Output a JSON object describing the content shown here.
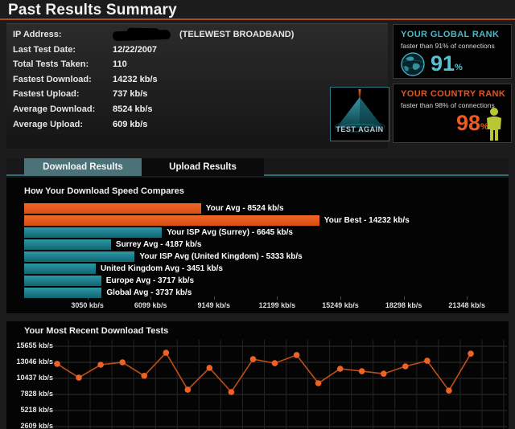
{
  "header": {
    "title": "Past Results Summary"
  },
  "summary": {
    "rows": [
      {
        "label": "IP Address:",
        "value": "",
        "redacted": true,
        "suffix": "(TELEWEST BROADBAND)"
      },
      {
        "label": "Last Test Date:",
        "value": "12/22/2007"
      },
      {
        "label": "Total Tests Taken:",
        "value": "110"
      },
      {
        "label": "Fastest Download:",
        "value": "14232 kb/s"
      },
      {
        "label": "Fastest Upload:",
        "value": "737 kb/s"
      },
      {
        "label": "Average Download:",
        "value": "8524 kb/s"
      },
      {
        "label": "Average Upload:",
        "value": "609 kb/s"
      }
    ],
    "test_again_label": "TEST AGAIN"
  },
  "ranks": {
    "global": {
      "title": "YOUR GLOBAL RANK",
      "subtitle": "faster than 91% of connections",
      "value": "91",
      "unit": "%"
    },
    "country": {
      "title": "YOUR COUNTRY RANK",
      "subtitle": "faster than 98% of connections",
      "value": "98",
      "unit": "%"
    }
  },
  "tabs": [
    {
      "label": "Download Results",
      "active": true
    },
    {
      "label": "Upload Results",
      "active": false
    }
  ],
  "chart_data": [
    {
      "type": "bar",
      "title": "How Your Download Speed Compares",
      "orientation": "horizontal",
      "axis_max": 23280,
      "bars": [
        {
          "label": "Your Avg - 8524 kb/s",
          "value": 8524,
          "color": "orange"
        },
        {
          "label": "Your Best - 14232 kb/s",
          "value": 14232,
          "color": "orange"
        },
        {
          "label": "Your ISP Avg (Surrey) - 6645 kb/s",
          "value": 6645,
          "color": "teal"
        },
        {
          "label": "Surrey Avg - 4187 kb/s",
          "value": 4187,
          "color": "teal"
        },
        {
          "label": "Your ISP Avg (United Kingdom) - 5333 kb/s",
          "value": 5333,
          "color": "teal"
        },
        {
          "label": "United Kingdom Avg - 3451 kb/s",
          "value": 3451,
          "color": "teal"
        },
        {
          "label": "Europe Avg - 3717 kb/s",
          "value": 3717,
          "color": "teal"
        },
        {
          "label": "Global Avg - 3737 kb/s",
          "value": 3737,
          "color": "teal"
        }
      ],
      "x_ticks": [
        "3050 kb/s",
        "6099 kb/s",
        "9149 kb/s",
        "12199 kb/s",
        "15249 kb/s",
        "18298 kb/s",
        "21348 kb/s"
      ],
      "x_tick_values": [
        3050,
        6099,
        9149,
        12199,
        15249,
        18298,
        21348
      ]
    },
    {
      "type": "line",
      "title": "Your Most Recent Download Tests",
      "y_ticks": [
        "15655 kb/s",
        "13046 kb/s",
        "10437 kb/s",
        "7828 kb/s",
        "5218 kb/s",
        "2609 kb/s"
      ],
      "y_tick_values": [
        15655,
        13046,
        10437,
        7828,
        5218,
        2609
      ],
      "values": [
        12800,
        10550,
        12650,
        13050,
        10850,
        14600,
        8600,
        12150,
        8220,
        13550,
        12900,
        14230,
        9650,
        12000,
        11600,
        11200,
        12400,
        13300,
        8450,
        14450
      ],
      "line_color": "#bf4f17",
      "point_color": "#ee6226",
      "grid": true,
      "legend": "none"
    }
  ],
  "colors": {
    "accent_orange": "#e8551e",
    "accent_teal": "#2d98a6",
    "underline": "#a4511e",
    "panel_black": "#040404"
  }
}
